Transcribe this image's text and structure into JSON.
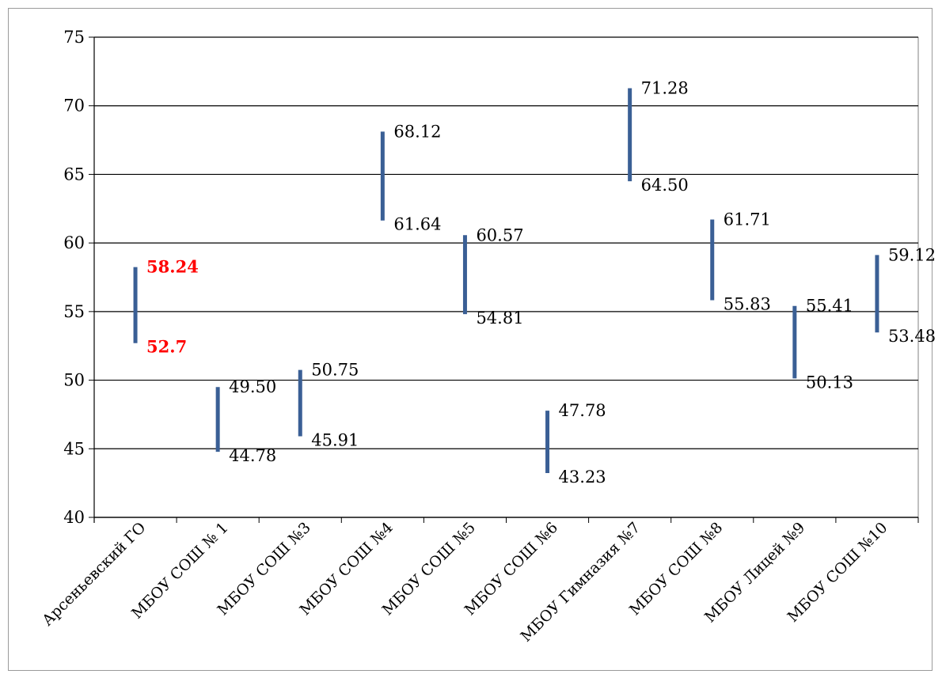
{
  "chart_data": {
    "type": "range-bar",
    "ylim": [
      40,
      75
    ],
    "yticks": [
      "75",
      "70",
      "65",
      "60",
      "55",
      "50",
      "45",
      "40"
    ],
    "grid": true,
    "bar_color": "#3a5f95",
    "highlight_color": "#ff0000",
    "categories": [
      "Арсеньевский ГО",
      "МБОУ СОШ № 1",
      "МБОУ СОШ №3",
      "МБОУ СОШ №4",
      "МБОУ СОШ №5",
      "МБОУ СОШ №6",
      "МБОУ Гимназия  №7",
      "МБОУ СОШ №8",
      "МБОУ Лицей №9",
      "МБОУ СОШ №10"
    ],
    "ranges": [
      {
        "low": 52.7,
        "high": 58.24,
        "low_label": "52.7",
        "high_label": "58.24",
        "highlight": true
      },
      {
        "low": 44.78,
        "high": 49.5,
        "low_label": "44.78",
        "high_label": "49.50",
        "highlight": false
      },
      {
        "low": 45.91,
        "high": 50.75,
        "low_label": "45.91",
        "high_label": "50.75",
        "highlight": false
      },
      {
        "low": 61.64,
        "high": 68.12,
        "low_label": "61.64",
        "high_label": "68.12",
        "highlight": false
      },
      {
        "low": 54.81,
        "high": 60.57,
        "low_label": "54.81",
        "high_label": "60.57",
        "highlight": false
      },
      {
        "low": 43.23,
        "high": 47.78,
        "low_label": "43.23",
        "high_label": "47.78",
        "highlight": false
      },
      {
        "low": 64.5,
        "high": 71.28,
        "low_label": "64.50",
        "high_label": "71.28",
        "highlight": false
      },
      {
        "low": 55.83,
        "high": 61.71,
        "low_label": "55.83",
        "high_label": "61.71",
        "highlight": false
      },
      {
        "low": 50.13,
        "high": 55.41,
        "low_label": "50.13",
        "high_label": "55.41",
        "highlight": false
      },
      {
        "low": 53.48,
        "high": 59.12,
        "low_label": "53.48",
        "high_label": "59.12",
        "highlight": false
      }
    ]
  }
}
